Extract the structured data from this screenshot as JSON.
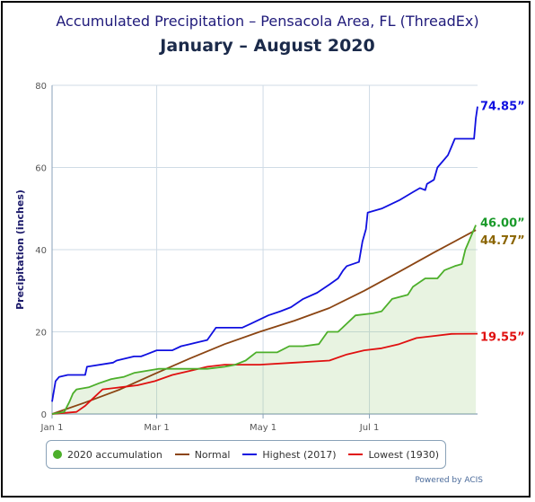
{
  "title": "Accumulated Precipitation – Pensacola Area, FL (ThreadEx)",
  "subtitle": "January – August 2020",
  "credit": "Powered by ACIS",
  "chart_data": {
    "type": "line",
    "ylabel": "Precipitation (inches)",
    "xlabel": "",
    "ylim": [
      0,
      80
    ],
    "xlim_days": [
      1,
      245
    ],
    "yticks": [
      0,
      20,
      40,
      60,
      80
    ],
    "xticks": [
      {
        "label": "Jan 1",
        "day": 1
      },
      {
        "label": "Mar 1",
        "day": 61
      },
      {
        "label": "May 1",
        "day": 122
      },
      {
        "label": "Jul 1",
        "day": 183
      }
    ],
    "grid": true,
    "legend_position": "bottom",
    "end_labels": [
      {
        "text": "74.85”",
        "series": "Highest (2017)",
        "value": 74.85,
        "color": "#1010e0"
      },
      {
        "text": "46.00”",
        "series": "2020 accumulation",
        "value": 46.0,
        "color": "#1a9a2a"
      },
      {
        "text": "44.77”",
        "series": "Normal",
        "value": 44.77,
        "color": "#8b6500"
      },
      {
        "text": "19.55”",
        "series": "Lowest (1930)",
        "value": 19.55,
        "color": "#e01010"
      }
    ],
    "series": [
      {
        "name": "2020 accumulation",
        "color": "#4caf2a",
        "fill": "rgba(150,200,120,0.22)",
        "points": [
          [
            1,
            0
          ],
          [
            8,
            0.5
          ],
          [
            11,
            3
          ],
          [
            13,
            5
          ],
          [
            15,
            6
          ],
          [
            22,
            6.5
          ],
          [
            28,
            7.5
          ],
          [
            35,
            8.5
          ],
          [
            42,
            9
          ],
          [
            48,
            10
          ],
          [
            55,
            10.5
          ],
          [
            62,
            11
          ],
          [
            70,
            11
          ],
          [
            80,
            11
          ],
          [
            90,
            11
          ],
          [
            100,
            11.5
          ],
          [
            106,
            12
          ],
          [
            112,
            13
          ],
          [
            118,
            15
          ],
          [
            125,
            15
          ],
          [
            130,
            15
          ],
          [
            137,
            16.5
          ],
          [
            145,
            16.5
          ],
          [
            154,
            17
          ],
          [
            159,
            20
          ],
          [
            165,
            20
          ],
          [
            170,
            22
          ],
          [
            175,
            24
          ],
          [
            185,
            24.5
          ],
          [
            190,
            25
          ],
          [
            196,
            28
          ],
          [
            205,
            29
          ],
          [
            208,
            31
          ],
          [
            215,
            33
          ],
          [
            222,
            33
          ],
          [
            226,
            35
          ],
          [
            232,
            36
          ],
          [
            236,
            36.5
          ],
          [
            238,
            40
          ],
          [
            240,
            42
          ],
          [
            242,
            44
          ],
          [
            244,
            46
          ]
        ]
      },
      {
        "name": "Normal",
        "color": "#8b4513",
        "points": [
          [
            1,
            0
          ],
          [
            20,
            2.8
          ],
          [
            40,
            6
          ],
          [
            60,
            9.8
          ],
          [
            80,
            13.5
          ],
          [
            100,
            17
          ],
          [
            120,
            20
          ],
          [
            140,
            22.7
          ],
          [
            160,
            25.8
          ],
          [
            180,
            30
          ],
          [
            200,
            34.6
          ],
          [
            220,
            39.3
          ],
          [
            244,
            44.77
          ]
        ]
      },
      {
        "name": "Highest (2017)",
        "color": "#1010e0",
        "points": [
          [
            1,
            3
          ],
          [
            3,
            8
          ],
          [
            5,
            9
          ],
          [
            10,
            9.5
          ],
          [
            20,
            9.5
          ],
          [
            21,
            11.5
          ],
          [
            36,
            12.5
          ],
          [
            38,
            13
          ],
          [
            48,
            14
          ],
          [
            52,
            14
          ],
          [
            55,
            14.5
          ],
          [
            61,
            15.5
          ],
          [
            70,
            15.5
          ],
          [
            75,
            16.5
          ],
          [
            80,
            17
          ],
          [
            90,
            18
          ],
          [
            95,
            21
          ],
          [
            110,
            21
          ],
          [
            115,
            22
          ],
          [
            120,
            23
          ],
          [
            125,
            24
          ],
          [
            132,
            25
          ],
          [
            138,
            26
          ],
          [
            145,
            28
          ],
          [
            153,
            29.5
          ],
          [
            160,
            31.5
          ],
          [
            165,
            33
          ],
          [
            168,
            35
          ],
          [
            170,
            36
          ],
          [
            177,
            37
          ],
          [
            179,
            42
          ],
          [
            181,
            45
          ],
          [
            182,
            49
          ],
          [
            190,
            50
          ],
          [
            195,
            51
          ],
          [
            200,
            52
          ],
          [
            208,
            54
          ],
          [
            212,
            55
          ],
          [
            215,
            54.5
          ],
          [
            216,
            56
          ],
          [
            220,
            57
          ],
          [
            222,
            60
          ],
          [
            228,
            63
          ],
          [
            230,
            65
          ],
          [
            232,
            67
          ],
          [
            243,
            67
          ],
          [
            244,
            72
          ],
          [
            245,
            74.85
          ]
        ]
      },
      {
        "name": "Lowest (1930)",
        "color": "#e01010",
        "points": [
          [
            1,
            0
          ],
          [
            15,
            0.5
          ],
          [
            20,
            2
          ],
          [
            25,
            4
          ],
          [
            30,
            6
          ],
          [
            40,
            6.5
          ],
          [
            50,
            7
          ],
          [
            60,
            8
          ],
          [
            70,
            9.5
          ],
          [
            80,
            10.5
          ],
          [
            90,
            11.5
          ],
          [
            100,
            12
          ],
          [
            120,
            12
          ],
          [
            140,
            12.5
          ],
          [
            160,
            13
          ],
          [
            170,
            14.5
          ],
          [
            180,
            15.5
          ],
          [
            190,
            16
          ],
          [
            200,
            17
          ],
          [
            210,
            18.5
          ],
          [
            220,
            19
          ],
          [
            230,
            19.5
          ],
          [
            245,
            19.55
          ]
        ]
      }
    ]
  },
  "legend": {
    "items": [
      {
        "label": "2020 accumulation",
        "color": "#4caf2a",
        "marker": "dot"
      },
      {
        "label": "Normal",
        "color": "#8b4513",
        "marker": "line"
      },
      {
        "label": "Highest (2017)",
        "color": "#1010e0",
        "marker": "line"
      },
      {
        "label": "Lowest (1930)",
        "color": "#e01010",
        "marker": "line"
      }
    ]
  }
}
